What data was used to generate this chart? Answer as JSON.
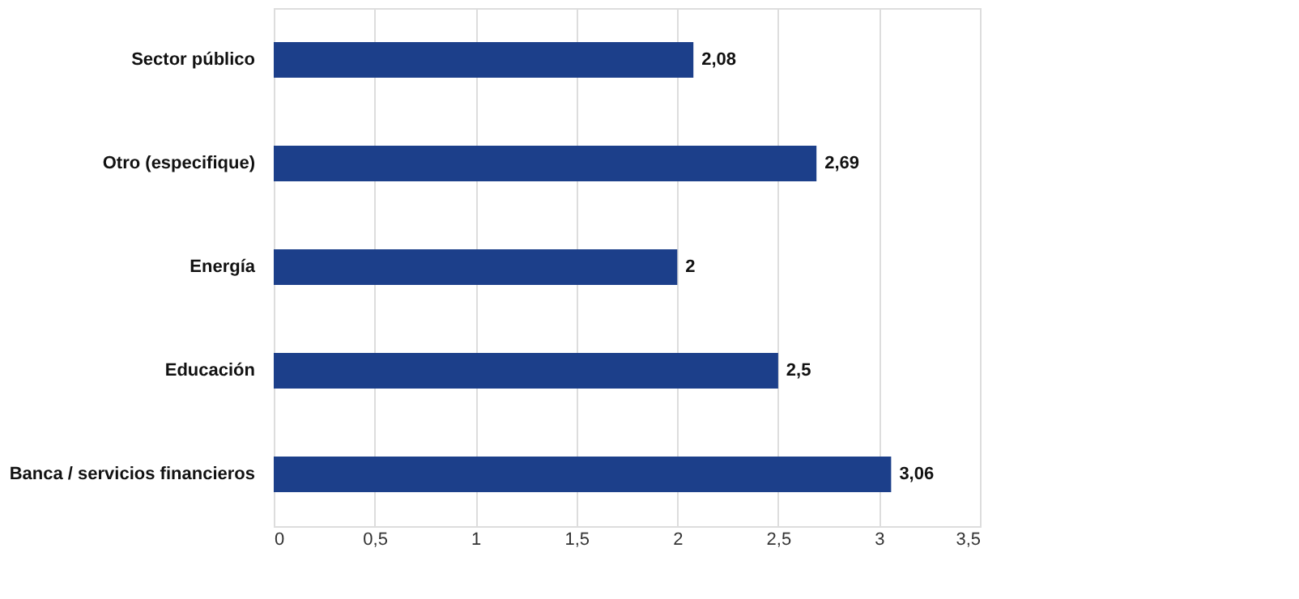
{
  "chart_data": {
    "type": "bar",
    "orientation": "horizontal",
    "categories": [
      "Sector público",
      "Otro (especifique)",
      "Energía",
      "Educación",
      "Banca / servicios financieros"
    ],
    "values": [
      2.08,
      2.69,
      2,
      2.5,
      3.06
    ],
    "value_labels": [
      "2,08",
      "2,69",
      "2",
      "2,5",
      "3,06"
    ],
    "color": "#1c3f8a",
    "xlim": [
      0,
      3.5
    ],
    "xticks": [
      0,
      {
        "value": 0.5,
        "label": "0,5"
      },
      1,
      {
        "value": 1.5,
        "label": "1,5"
      },
      2,
      {
        "value": 2.5,
        "label": "2,5"
      },
      3,
      {
        "value": 3.5,
        "label": "3,5"
      }
    ],
    "grid": "x"
  }
}
